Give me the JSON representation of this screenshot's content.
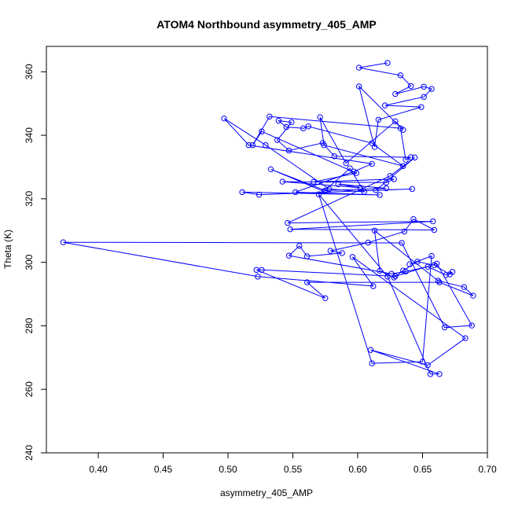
{
  "chart_data": {
    "type": "line",
    "title": "ATOM4 Northbound asymmetry_405_AMP",
    "xlabel": "asymmetry_405_AMP",
    "ylabel": "Theta (K)",
    "xlim": [
      0.36,
      0.7
    ],
    "ylim": [
      240,
      368
    ],
    "xticks": [
      0.4,
      0.45,
      0.5,
      0.55,
      0.6,
      0.65,
      0.7
    ],
    "xtick_labels": [
      "0.40",
      "0.45",
      "0.50",
      "0.55",
      "0.60",
      "0.65",
      "0.70"
    ],
    "yticks": [
      240,
      260,
      280,
      300,
      320,
      340,
      360
    ],
    "ytick_labels": [
      "240",
      "260",
      "280",
      "300",
      "320",
      "340",
      "360"
    ],
    "grid": false,
    "line_color": "#0000ff",
    "marker": "open-circle",
    "series": [
      {
        "name": "",
        "x": [
          0.623,
          0.601,
          0.633,
          0.641,
          0.629,
          0.651,
          0.657,
          0.651,
          0.621,
          0.649,
          0.616,
          0.613,
          0.601,
          0.635,
          0.629,
          0.591,
          0.571,
          0.574,
          0.635,
          0.611,
          0.562,
          0.558,
          0.545,
          0.539,
          0.549,
          0.538,
          0.547,
          0.573,
          0.582,
          0.641,
          0.637,
          0.633,
          0.532,
          0.519,
          0.526,
          0.599,
          0.566,
          0.628,
          0.622,
          0.542,
          0.602,
          0.585,
          0.622,
          0.575,
          0.533,
          0.574,
          0.594,
          0.605,
          0.578,
          0.529,
          0.497,
          0.516,
          0.611,
          0.597,
          0.552,
          0.617,
          0.511,
          0.524,
          0.642,
          0.614,
          0.644,
          0.625,
          0.546,
          0.658,
          0.548,
          0.659,
          0.643,
          0.636,
          0.608,
          0.579,
          0.588,
          0.561,
          0.555,
          0.547,
          0.626,
          0.637,
          0.654,
          0.668,
          0.673,
          0.671,
          0.659,
          0.646,
          0.635,
          0.628,
          0.617,
          0.613,
          0.662,
          0.682,
          0.689,
          0.663,
          0.561,
          0.575,
          0.522,
          0.526,
          0.629,
          0.661,
          0.688,
          0.667,
          0.634,
          0.373,
          0.523,
          0.612,
          0.596,
          0.683,
          0.654,
          0.61,
          0.663,
          0.656,
          0.623,
          0.57,
          0.611,
          0.65,
          0.657,
          0.64
        ],
        "y": [
          362.8,
          361.3,
          358.9,
          355.5,
          353.0,
          355.3,
          354.6,
          352.1,
          349.4,
          348.9,
          344.9,
          336.3,
          355.4,
          341.7,
          344.4,
          331.2,
          345.7,
          336.9,
          330.3,
          337.5,
          342.8,
          342.2,
          342.6,
          344.6,
          344.1,
          338.5,
          335.2,
          337.6,
          333.4,
          333.1,
          332.3,
          342.2,
          345.9,
          336.9,
          341.2,
          328.1,
          325.3,
          326.2,
          325.1,
          325.4,
          323.5,
          324.6,
          323.3,
          322.6,
          329.3,
          322.3,
          329.6,
          322.2,
          323.1,
          336.9,
          345.3,
          336.9,
          331.0,
          328.6,
          322.1,
          321.2,
          322.1,
          321.3,
          323.1,
          322.7,
          333.0,
          327.2,
          312.4,
          312.9,
          310.4,
          310.2,
          313.6,
          309.7,
          306.2,
          303.6,
          302.9,
          301.9,
          305.2,
          302.1,
          296.4,
          297.1,
          298.6,
          296.0,
          297.0,
          296.2,
          299.1,
          300.2,
          297.4,
          295.2,
          297.3,
          310.0,
          294.2,
          292.2,
          289.5,
          293.7,
          293.7,
          288.7,
          297.6,
          297.6,
          295.6,
          299.6,
          280.1,
          279.5,
          306.1,
          306.3,
          295.5,
          292.5,
          301.7,
          276.1,
          267.6,
          272.4,
          264.8,
          264.8,
          295.5,
          321.4,
          268.2,
          268.7,
          302.0,
          299.4
        ]
      }
    ]
  }
}
